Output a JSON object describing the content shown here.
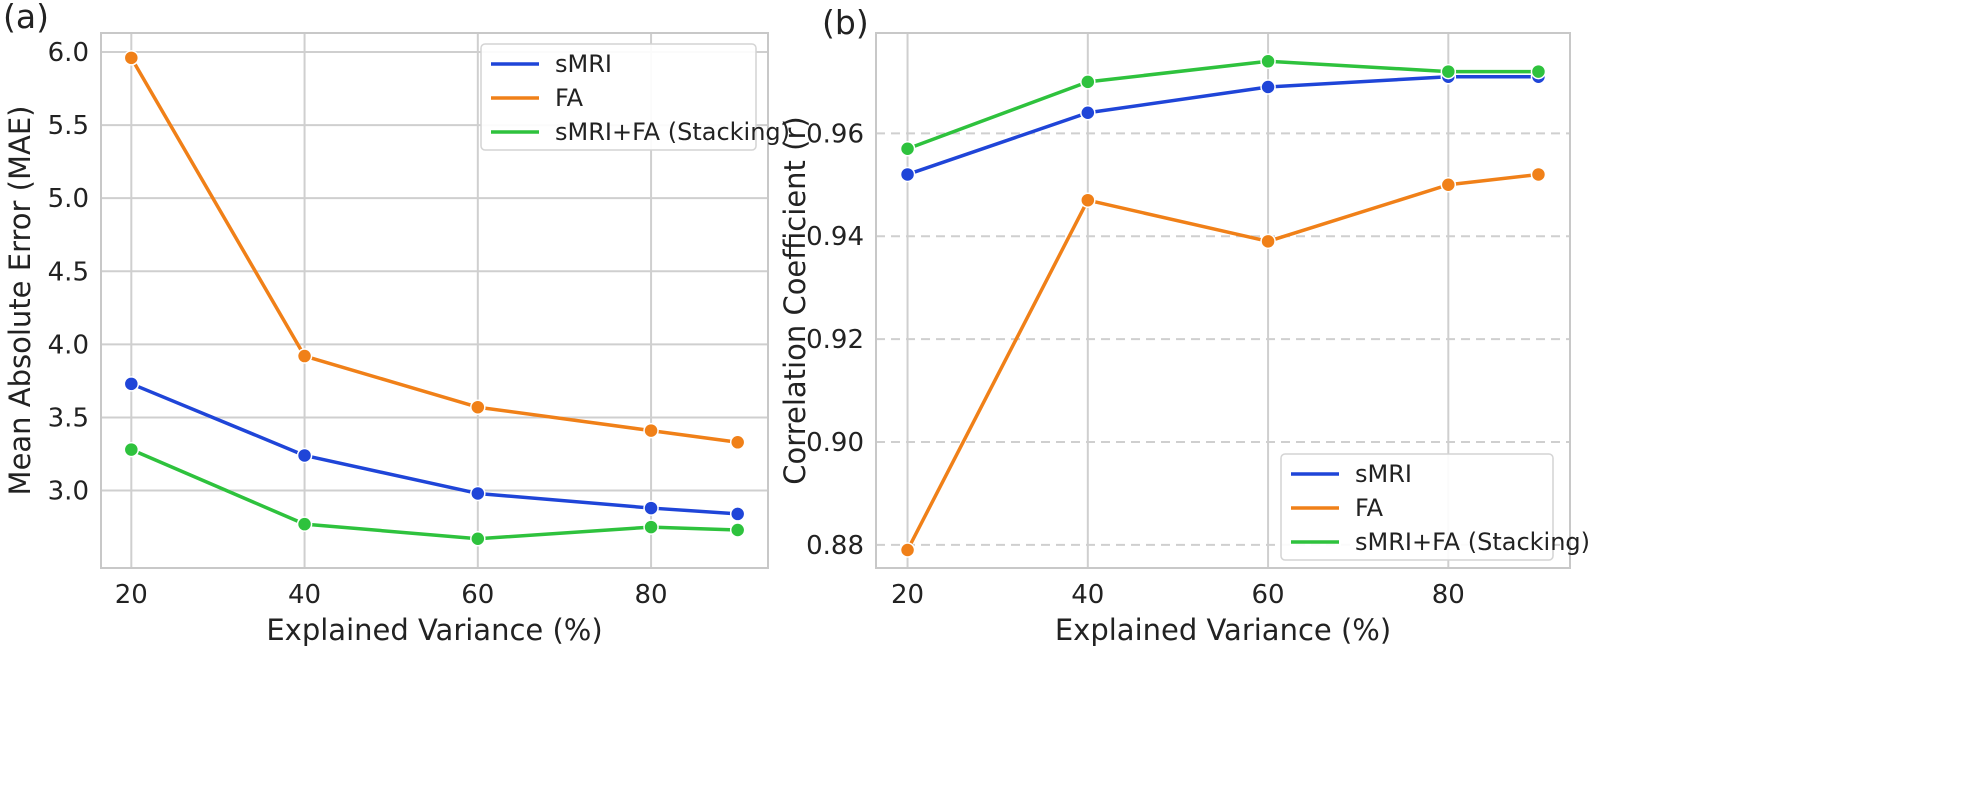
{
  "chart_data": [
    {
      "type": "line",
      "panel_label": "(a)",
      "title": "",
      "xlabel": "Explained Variance (%)",
      "ylabel": "Mean Absolute Error (MAE)",
      "x": [
        20,
        40,
        60,
        80,
        90
      ],
      "xticks": [
        "20",
        "40",
        "60",
        "80"
      ],
      "yticks": [
        "3.0",
        "3.5",
        "4.0",
        "4.5",
        "5.0",
        "5.5",
        "6.0"
      ],
      "xlim": [
        16.5,
        93.5
      ],
      "ylim": [
        2.47,
        6.13
      ],
      "grid": "both-solid",
      "legend_position": "upper-right",
      "series": [
        {
          "name": "sMRI",
          "color": "#1f45d8",
          "values": [
            3.73,
            3.24,
            2.98,
            2.88,
            2.84
          ]
        },
        {
          "name": "FA",
          "color": "#f08018",
          "values": [
            5.96,
            3.92,
            3.57,
            3.41,
            3.33
          ]
        },
        {
          "name": "sMRI+FA (Stacking)",
          "color": "#2ec23d",
          "values": [
            3.28,
            2.77,
            2.67,
            2.75,
            2.73
          ]
        }
      ]
    },
    {
      "type": "line",
      "panel_label": "(b)",
      "title": "",
      "xlabel": "Explained Variance (%)",
      "ylabel": "Correlation Coefficient (r)",
      "x": [
        20,
        40,
        60,
        80,
        90
      ],
      "xticks": [
        "20",
        "40",
        "60",
        "80"
      ],
      "yticks": [
        "0.88",
        "0.90",
        "0.92",
        "0.94",
        "0.96"
      ],
      "xlim": [
        16.5,
        93.5
      ],
      "ylim": [
        0.8755,
        0.9795
      ],
      "grid": "x-solid-y-dashed",
      "legend_position": "lower-right",
      "series": [
        {
          "name": "sMRI",
          "color": "#1f45d8",
          "values": [
            0.952,
            0.964,
            0.969,
            0.971,
            0.971
          ]
        },
        {
          "name": "FA",
          "color": "#f08018",
          "values": [
            0.879,
            0.947,
            0.939,
            0.95,
            0.952
          ]
        },
        {
          "name": "sMRI+FA (Stacking)",
          "color": "#2ec23d",
          "values": [
            0.957,
            0.97,
            0.974,
            0.972,
            0.972
          ]
        }
      ]
    }
  ]
}
